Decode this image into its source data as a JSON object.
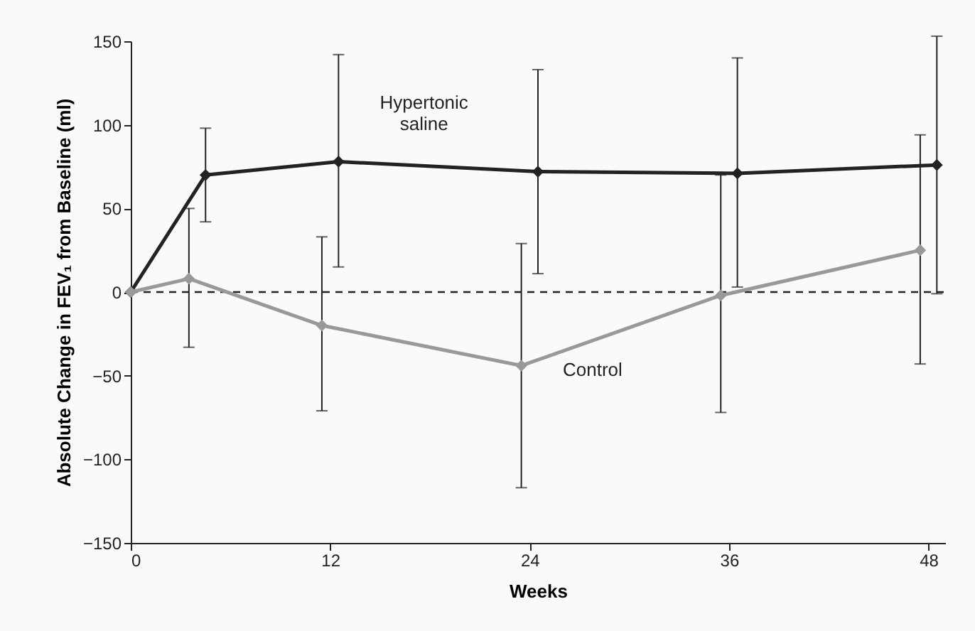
{
  "chart_data": {
    "type": "line",
    "xlabel": "Weeks",
    "ylabel": "Absolute Change in FEV₁ from Baseline (ml)",
    "xlim": [
      0,
      49
    ],
    "xticks": [
      0,
      12,
      24,
      36,
      48
    ],
    "ylim": [
      -150,
      150
    ],
    "yticks": [
      -150,
      -100,
      -50,
      0,
      50,
      100,
      150
    ],
    "grid": false,
    "legend": false,
    "marker": "diamond",
    "line_style": "solid",
    "ref_lines": [
      {
        "axis": "y",
        "value": 0,
        "line_style": "dashed",
        "color": "#222222"
      }
    ],
    "series": [
      {
        "name": "Hypertonic saline",
        "color": "#222222",
        "x": [
          0,
          4.5,
          12.5,
          24.5,
          36.5,
          48.5
        ],
        "values": [
          0,
          70,
          78,
          72,
          71,
          76
        ],
        "errors": [
          null,
          [
            42,
            98
          ],
          [
            15,
            142
          ],
          [
            11,
            133
          ],
          [
            3,
            140
          ],
          [
            -1,
            153
          ]
        ]
      },
      {
        "name": "Control",
        "color": "#999999",
        "x": [
          0,
          3.5,
          11.5,
          23.5,
          35.5,
          47.5
        ],
        "values": [
          0,
          8,
          -20,
          -44,
          -2,
          25
        ],
        "errors": [
          null,
          [
            -33,
            50
          ],
          [
            -71,
            33
          ],
          [
            -117,
            29
          ],
          [
            -72,
            70
          ],
          [
            -43,
            94
          ]
        ]
      }
    ]
  }
}
